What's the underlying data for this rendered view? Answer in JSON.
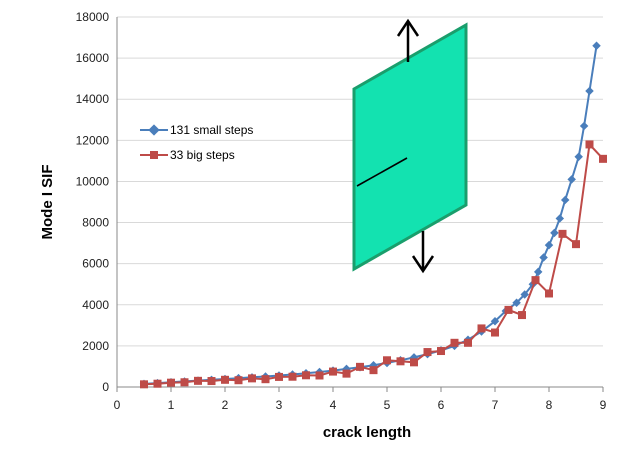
{
  "chart_data": {
    "type": "line",
    "title": "",
    "xlabel": "crack length",
    "ylabel": "Mode I SIF",
    "xlim": [
      0,
      9
    ],
    "ylim": [
      0,
      18000
    ],
    "xticks": [
      "0",
      "1",
      "2",
      "3",
      "4",
      "5",
      "6",
      "7",
      "8",
      "9"
    ],
    "yticks": [
      "0",
      "2000",
      "4000",
      "6000",
      "8000",
      "10000",
      "12000",
      "14000",
      "16000",
      "18000"
    ],
    "grid": "horizontal",
    "legend_position": "left-middle",
    "series": [
      {
        "name": "131 small steps",
        "color": "#4a7ebb",
        "marker": "diamond",
        "x": [
          0.5,
          0.75,
          1.0,
          1.25,
          1.5,
          1.75,
          2.0,
          2.25,
          2.5,
          2.75,
          3.0,
          3.25,
          3.5,
          3.75,
          4.0,
          4.25,
          4.5,
          4.75,
          5.0,
          5.25,
          5.5,
          5.75,
          6.0,
          6.25,
          6.5,
          6.75,
          7.0,
          7.2,
          7.4,
          7.55,
          7.7,
          7.8,
          7.9,
          8.0,
          8.1,
          8.2,
          8.3,
          8.42,
          8.55,
          8.65,
          8.75,
          8.88
        ],
        "values": [
          150,
          190,
          230,
          270,
          310,
          350,
          390,
          430,
          470,
          510,
          560,
          610,
          670,
          730,
          800,
          880,
          960,
          1060,
          1170,
          1300,
          1440,
          1600,
          1780,
          2000,
          2300,
          2700,
          3200,
          3700,
          4100,
          4500,
          5000,
          5600,
          6300,
          6900,
          7500,
          8200,
          9100,
          10100,
          11200,
          12700,
          14400,
          16600
        ]
      },
      {
        "name": "33 big steps",
        "color": "#be4b48",
        "marker": "square",
        "x": [
          0.5,
          0.75,
          1.0,
          1.25,
          1.5,
          1.75,
          2.0,
          2.25,
          2.5,
          2.75,
          3.0,
          3.25,
          3.5,
          3.75,
          4.0,
          4.25,
          4.5,
          4.75,
          5.0,
          5.25,
          5.5,
          5.75,
          6.0,
          6.25,
          6.5,
          6.75,
          7.0,
          7.25,
          7.5,
          7.75,
          8.0,
          8.25,
          8.5,
          8.75,
          9.0
        ],
        "x_note": "",
        "values": [
          130,
          160,
          210,
          230,
          300,
          290,
          350,
          330,
          420,
          380,
          490,
          500,
          570,
          560,
          750,
          650,
          980,
          820,
          1300,
          1250,
          1200,
          1700,
          1750,
          2150,
          2150,
          2850,
          2650,
          3750,
          3500,
          5200,
          4550,
          7450,
          6950,
          11800,
          11100
        ]
      }
    ]
  },
  "graphic": {
    "plate_fill": "#13e2b0",
    "plate_stroke": "#1a9e6c",
    "arrow_color": "#000000"
  }
}
